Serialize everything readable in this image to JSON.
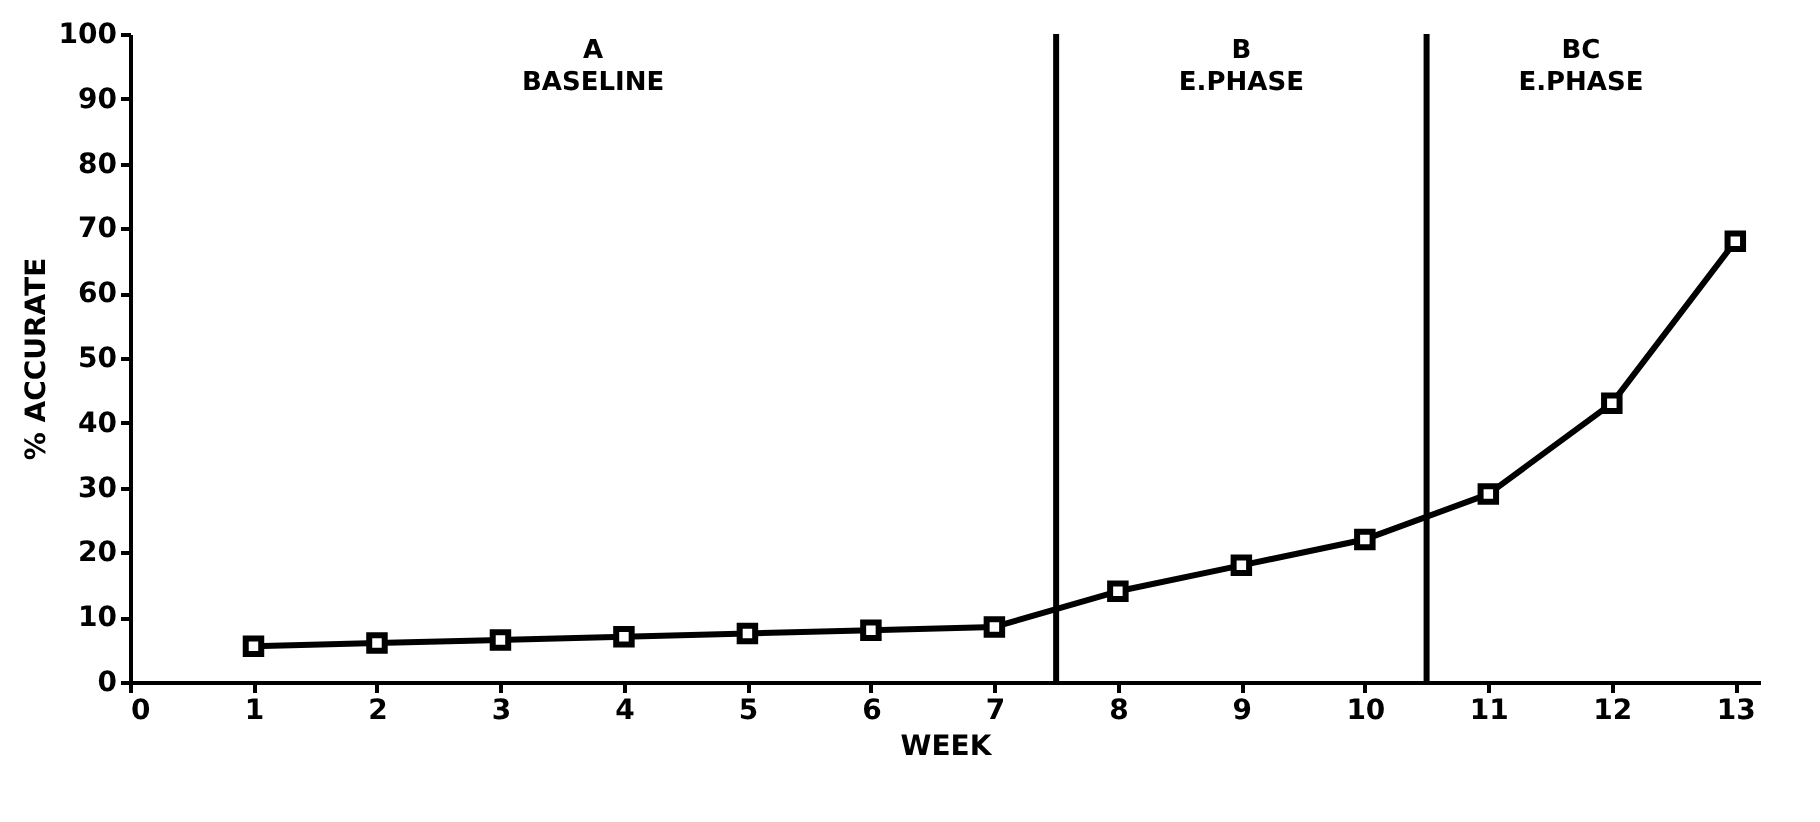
{
  "chart_data": {
    "type": "line",
    "xlabel": "WEEK",
    "ylabel": "% ACCURATE",
    "x": [
      1,
      2,
      3,
      4,
      5,
      6,
      7,
      8,
      9,
      10,
      11,
      12,
      13
    ],
    "series": [
      {
        "color": "#000000",
        "values": [
          5.5,
          6,
          6.5,
          7,
          7.5,
          8,
          8.5,
          14,
          18,
          22,
          29,
          43,
          68
        ]
      }
    ],
    "xlim": [
      0,
      13.2
    ],
    "xticks": [
      0,
      1,
      2,
      3,
      4,
      5,
      6,
      7,
      8,
      9,
      10,
      11,
      12,
      13
    ],
    "ylim": [
      0,
      100
    ],
    "yticks": [
      0,
      10,
      20,
      30,
      40,
      50,
      60,
      70,
      80,
      90,
      100
    ],
    "ref_lines": [
      {
        "axis": "x",
        "value": 7.5,
        "color": "#000000"
      },
      {
        "axis": "x",
        "value": 10.5,
        "color": "#000000"
      }
    ],
    "annotations": [
      "A",
      "BASELINE",
      "B",
      "E.PHASE",
      "BC",
      "E.PHASE"
    ],
    "marker": "square",
    "line_style": "solid",
    "grid": false
  }
}
